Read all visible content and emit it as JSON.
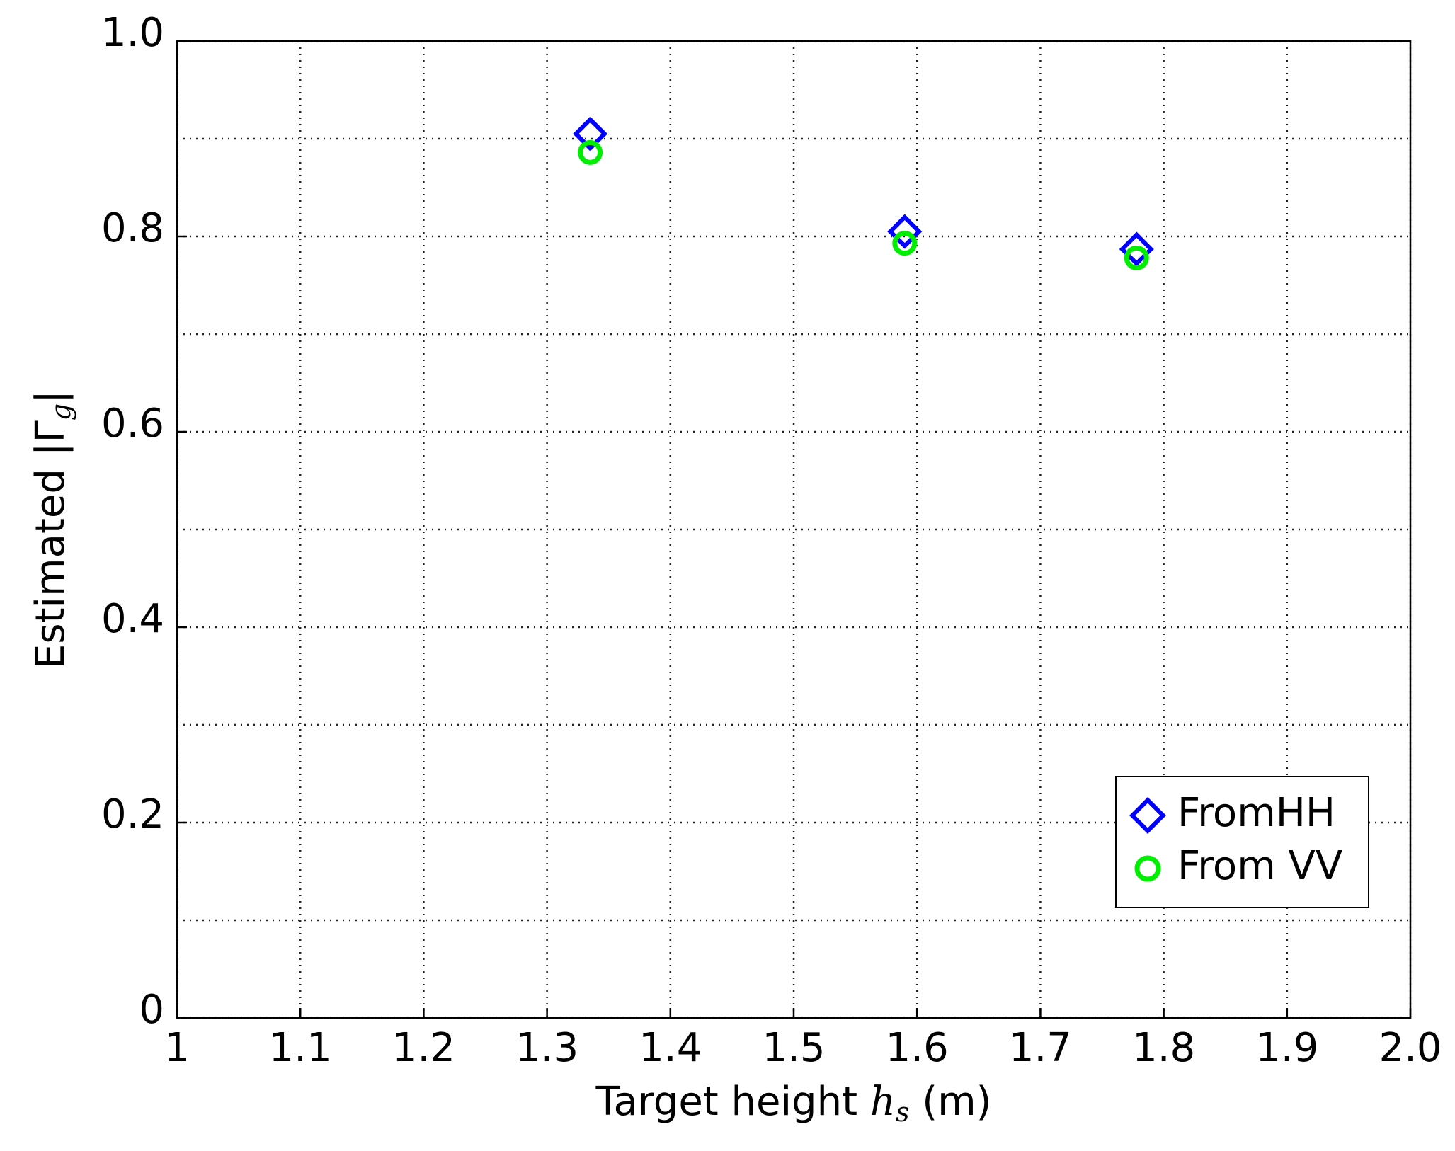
{
  "chart_data": {
    "type": "scatter",
    "xlabel": [
      "Target height ",
      "h",
      "s",
      " (m)"
    ],
    "ylabel": [
      "Estimated |Γ",
      "g",
      "|"
    ],
    "xlim": [
      1,
      2
    ],
    "xticks": [
      1,
      1.1,
      1.2,
      1.3,
      1.4,
      1.5,
      1.6,
      1.7,
      1.8,
      1.9,
      {
        "value": 2,
        "label": "2.0"
      }
    ],
    "ylim": [
      0,
      1
    ],
    "yticks": [
      0,
      0.2,
      0.4,
      0.6,
      0.8,
      {
        "value": 1,
        "label": "1.0"
      }
    ],
    "yminor_grid": [
      0.1,
      0.3,
      0.5,
      0.7,
      0.9
    ],
    "grid": true,
    "legend": "lower right",
    "series": [
      {
        "name": "FromHH",
        "color": "#0000ff",
        "marker": "diamond",
        "x": [
          1.335,
          1.59,
          1.778
        ],
        "values": [
          0.905,
          0.805,
          0.787
        ]
      },
      {
        "name": "From VV",
        "color": "#00ee00",
        "marker": "circle",
        "x": [
          1.335,
          1.59,
          1.778
        ],
        "values": [
          0.886,
          0.793,
          0.778
        ]
      }
    ]
  }
}
